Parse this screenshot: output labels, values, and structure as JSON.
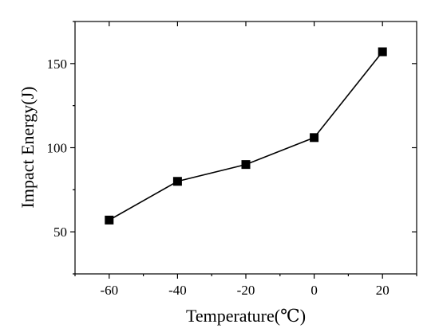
{
  "chart_data": {
    "type": "line",
    "title": "",
    "xlabel": "Temperature(℃)",
    "ylabel": "Impact Energy(J)",
    "xlim": [
      -70,
      30
    ],
    "ylim": [
      25,
      175
    ],
    "x_ticks": [
      -60,
      -40,
      -20,
      0,
      20
    ],
    "x_tick_labels": [
      "-60",
      "-40",
      "-20",
      "0",
      "20"
    ],
    "y_ticks": [
      50,
      100,
      150
    ],
    "y_tick_labels": [
      "50",
      "100",
      "150"
    ],
    "grid": false,
    "legend": "none",
    "series": [
      {
        "marker": "square",
        "color": "#000000",
        "x": [
          -60,
          -40,
          -20,
          0,
          20
        ],
        "y": [
          57,
          80,
          90,
          106,
          157
        ]
      }
    ]
  }
}
